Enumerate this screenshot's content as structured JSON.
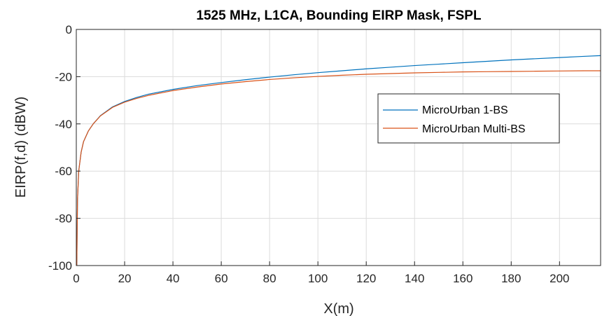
{
  "chart_data": {
    "type": "line",
    "title": "1525 MHz, L1CA, Bounding EIRP Mask, FSPL",
    "xlabel": "X(m)",
    "ylabel": "EIRP(f,d) (dBW)",
    "xlim": [
      0,
      217
    ],
    "ylim": [
      -100,
      0
    ],
    "x_ticks": [
      0,
      20,
      40,
      60,
      80,
      100,
      120,
      140,
      160,
      180,
      200
    ],
    "y_ticks": [
      0,
      -20,
      -40,
      -60,
      -80,
      -100
    ],
    "grid": true,
    "legend_position": "center-right",
    "series": [
      {
        "name": "MicroUrban 1-BS",
        "color": "#0072BD",
        "x": [
          0.2,
          0.5,
          1,
          2,
          3,
          5,
          7,
          10,
          15,
          20,
          25,
          30,
          40,
          50,
          60,
          70,
          80,
          90,
          100,
          110,
          120,
          130,
          140,
          150,
          160,
          170,
          180,
          190,
          200,
          210,
          217
        ],
        "y": [
          -100,
          -72,
          -60,
          -52,
          -47.5,
          -43,
          -40,
          -36.5,
          -32.8,
          -30.5,
          -28.8,
          -27.4,
          -25.4,
          -23.8,
          -22.5,
          -21.3,
          -20.2,
          -19.2,
          -18.3,
          -17.5,
          -16.7,
          -16,
          -15.3,
          -14.7,
          -14.1,
          -13.5,
          -12.9,
          -12.4,
          -11.9,
          -11.4,
          -11.1
        ]
      },
      {
        "name": "MicroUrban Multi-BS",
        "color": "#D95319",
        "x": [
          0.2,
          0.5,
          1,
          2,
          3,
          5,
          7,
          10,
          15,
          20,
          25,
          30,
          40,
          50,
          60,
          70,
          80,
          90,
          100,
          110,
          120,
          130,
          140,
          150,
          160,
          170,
          180,
          190,
          200,
          210,
          217
        ],
        "y": [
          -100,
          -72,
          -60,
          -52,
          -47.5,
          -43,
          -40,
          -36.6,
          -33,
          -30.8,
          -29.2,
          -27.9,
          -25.9,
          -24.4,
          -23.1,
          -22.1,
          -21.2,
          -20.5,
          -19.9,
          -19.4,
          -19,
          -18.7,
          -18.4,
          -18.2,
          -18,
          -17.9,
          -17.8,
          -17.7,
          -17.6,
          -17.5,
          -17.5
        ]
      }
    ]
  }
}
